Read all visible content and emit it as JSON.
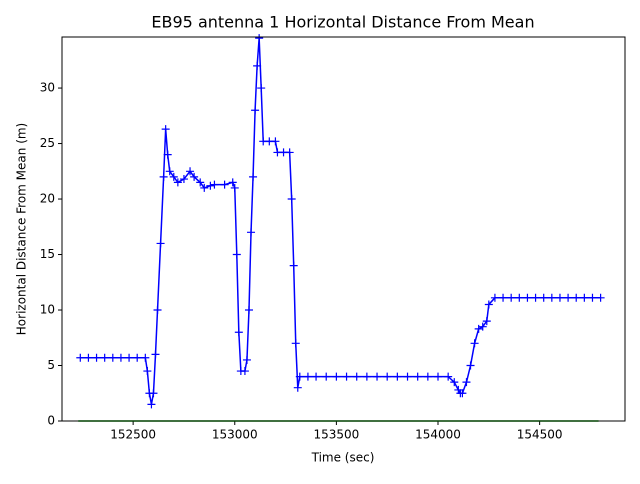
{
  "chart_data": {
    "type": "line",
    "title": "EB95 antenna 1 Horizontal Distance From Mean",
    "x_label": "Time (sec)",
    "y_label": "Horizontal Distance From Mean (m)",
    "xlim": [
      152150,
      154920
    ],
    "ylim": [
      0,
      34.6
    ],
    "xticks": [
      152500,
      153000,
      153500,
      154000,
      154500
    ],
    "yticks": [
      0,
      5,
      10,
      15,
      20,
      25,
      30
    ],
    "series": [
      {
        "color": "#0000ff",
        "marker": "+",
        "x": [
          152240,
          152280,
          152320,
          152360,
          152400,
          152440,
          152480,
          152520,
          152560,
          152570,
          152580,
          152590,
          152600,
          152610,
          152620,
          152635,
          152650,
          152660,
          152670,
          152680,
          152700,
          152720,
          152750,
          152780,
          152800,
          152830,
          152850,
          152880,
          152900,
          152950,
          152990,
          153000,
          153010,
          153020,
          153030,
          153050,
          153060,
          153070,
          153080,
          153090,
          153100,
          153110,
          153120,
          153130,
          153140,
          153170,
          153200,
          153210,
          153240,
          153270,
          153280,
          153290,
          153300,
          153310,
          153320,
          153360,
          153400,
          153450,
          153500,
          153550,
          153600,
          153650,
          153700,
          153750,
          153800,
          153850,
          153900,
          153950,
          154000,
          154050,
          154080,
          154100,
          154110,
          154120,
          154140,
          154160,
          154180,
          154200,
          154220,
          154240,
          154250,
          154280,
          154320,
          154360,
          154400,
          154440,
          154480,
          154520,
          154560,
          154600,
          154640,
          154680,
          154720,
          154760,
          154800
        ],
        "values": [
          5.7,
          5.7,
          5.7,
          5.7,
          5.7,
          5.7,
          5.7,
          5.7,
          5.7,
          4.5,
          2.5,
          1.5,
          2.5,
          6,
          10,
          16,
          22,
          26.3,
          24,
          22.5,
          22,
          21.5,
          21.8,
          22.5,
          22,
          21.5,
          21,
          21.2,
          21.3,
          21.3,
          21.5,
          21,
          15,
          8,
          4.5,
          4.5,
          5.5,
          10,
          17,
          22,
          28,
          32,
          34.5,
          30,
          25.2,
          25.2,
          25.2,
          24.2,
          24.2,
          24.2,
          20,
          14,
          7,
          3,
          4,
          4,
          4,
          4,
          4,
          4,
          4,
          4,
          4,
          4,
          4,
          4,
          4,
          4,
          4,
          4,
          3.5,
          2.8,
          2.5,
          2.5,
          3.5,
          5,
          7,
          8.3,
          8.5,
          9,
          10.5,
          11.1,
          11.1,
          11.1,
          11.1,
          11.1,
          11.1,
          11.1,
          11.1,
          11.1,
          11.1,
          11.1,
          11.1,
          11.1,
          11.1
        ]
      },
      {
        "color": "#00c000",
        "x": [
          152230,
          154790
        ],
        "values": [
          0,
          0
        ]
      }
    ]
  }
}
